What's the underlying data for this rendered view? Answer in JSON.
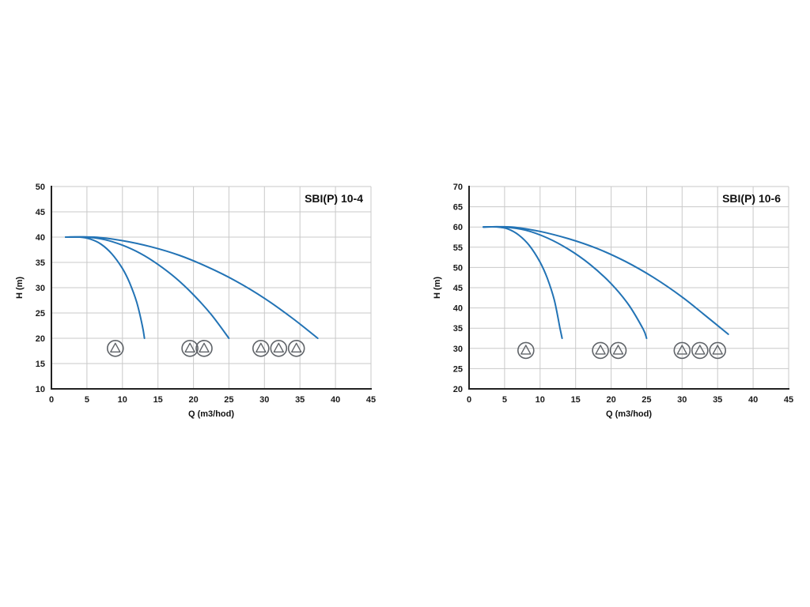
{
  "colors": {
    "curve": "#2273b5",
    "grid": "#c9c9c9",
    "axis": "#222222",
    "pump_icon": "#5f6368",
    "background": "#ffffff"
  },
  "chart_data": [
    {
      "type": "line",
      "title": "SBI(P) 10-4",
      "xlabel": "Q (m3/hod)",
      "ylabel": "H (m)",
      "xlim": [
        0,
        45
      ],
      "ylim": [
        10,
        50
      ],
      "xticks": [
        0,
        5,
        10,
        15,
        20,
        25,
        30,
        35,
        40,
        45
      ],
      "yticks": [
        10,
        15,
        20,
        25,
        30,
        35,
        40,
        45,
        50
      ],
      "grid": true,
      "legend": "none",
      "series": [
        {
          "name": "1 pump",
          "points": [
            [
              2,
              40
            ],
            [
              4,
              40
            ],
            [
              5.5,
              39.6
            ],
            [
              7,
              38.6
            ],
            [
              8.5,
              36.7
            ],
            [
              10,
              33.8
            ],
            [
              11,
              31.0
            ],
            [
              12,
              27.2
            ],
            [
              12.8,
              22.5
            ],
            [
              13.1,
              20
            ]
          ]
        },
        {
          "name": "2 pumps",
          "points": [
            [
              2,
              40
            ],
            [
              5,
              40
            ],
            [
              7.5,
              39.5
            ],
            [
              10,
              38.4
            ],
            [
              12.5,
              36.8
            ],
            [
              15,
              34.6
            ],
            [
              17.5,
              31.9
            ],
            [
              20,
              28.6
            ],
            [
              22.5,
              24.7
            ],
            [
              25,
              20
            ]
          ]
        },
        {
          "name": "3 pumps",
          "points": [
            [
              2,
              40
            ],
            [
              6,
              40
            ],
            [
              10,
              39.3
            ],
            [
              14,
              38.1
            ],
            [
              18,
              36.4
            ],
            [
              22,
              34.1
            ],
            [
              26,
              31.3
            ],
            [
              30,
              27.9
            ],
            [
              34,
              23.9
            ],
            [
              37.5,
              20
            ]
          ]
        }
      ],
      "pumps": {
        "y": 18,
        "groups": [
          [
            9
          ],
          [
            19.5,
            21.5
          ],
          [
            29.5,
            32,
            34.5
          ]
        ]
      }
    },
    {
      "type": "line",
      "title": "SBI(P) 10-6",
      "xlabel": "Q (m3/hod)",
      "ylabel": "H (m)",
      "xlim": [
        0,
        45
      ],
      "ylim": [
        20,
        70
      ],
      "xticks": [
        0,
        5,
        10,
        15,
        20,
        25,
        30,
        35,
        40,
        45
      ],
      "yticks": [
        20,
        25,
        30,
        35,
        40,
        45,
        50,
        55,
        60,
        65,
        70
      ],
      "grid": true,
      "legend": "none",
      "series": [
        {
          "name": "1 pump",
          "points": [
            [
              2,
              60
            ],
            [
              4,
              60
            ],
            [
              5.5,
              59.5
            ],
            [
              7,
              58.0
            ],
            [
              8.5,
              55.4
            ],
            [
              10,
              51.3
            ],
            [
              11,
              47.4
            ],
            [
              12,
              42.0
            ],
            [
              12.8,
              35.0
            ],
            [
              13.1,
              32.5
            ]
          ]
        },
        {
          "name": "2 pumps",
          "points": [
            [
              2,
              60
            ],
            [
              5,
              60
            ],
            [
              8,
              59.2
            ],
            [
              11,
              57.3
            ],
            [
              14,
              54.5
            ],
            [
              17,
              50.8
            ],
            [
              20,
              46.0
            ],
            [
              22.5,
              40.7
            ],
            [
              24.5,
              34.8
            ],
            [
              25,
              32.5
            ]
          ]
        },
        {
          "name": "3 pumps",
          "points": [
            [
              2,
              60
            ],
            [
              6,
              60
            ],
            [
              10,
              58.9
            ],
            [
              14,
              57.1
            ],
            [
              18,
              54.7
            ],
            [
              22,
              51.5
            ],
            [
              26,
              47.5
            ],
            [
              30,
              42.7
            ],
            [
              33,
              38.5
            ],
            [
              36.5,
              33.5
            ]
          ]
        }
      ],
      "pumps": {
        "y": 29.5,
        "groups": [
          [
            8
          ],
          [
            18.5,
            21
          ],
          [
            30,
            32.5,
            35
          ]
        ]
      }
    }
  ]
}
